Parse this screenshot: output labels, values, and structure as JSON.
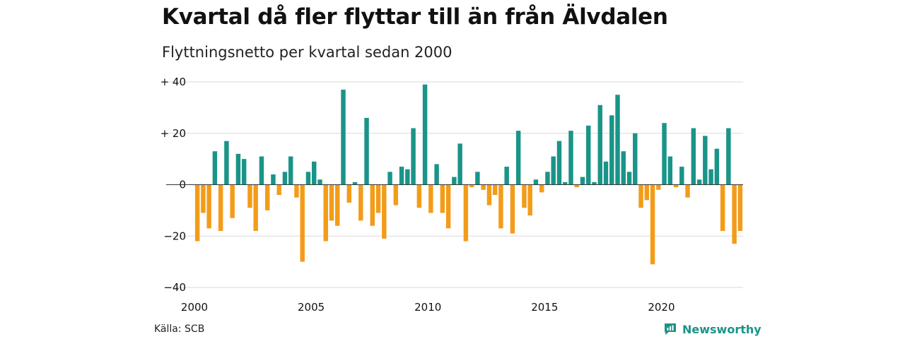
{
  "title": "Kvartal då fler flyttar till än från Älvdalen",
  "subtitle": "Flyttningsnetto per kvartal sedan 2000",
  "source": "Källa: SCB",
  "brand": "Newsworthy",
  "colors": {
    "positive": "#1a9488",
    "negative": "#f39c19",
    "grid": "#d9d9d9",
    "brand": "#1a9488"
  },
  "chart_data": {
    "type": "bar",
    "title": "Kvartal då fler flyttar till än från Älvdalen",
    "subtitle": "Flyttningsnetto per kvartal sedan 2000",
    "xlabel": "",
    "ylabel": "",
    "ylim": [
      -40,
      40
    ],
    "yticks": [
      {
        "value": 40,
        "label": "+ 40"
      },
      {
        "value": 20,
        "label": "+ 20"
      },
      {
        "value": 0,
        "label": "0"
      },
      {
        "value": -20,
        "label": "−20"
      },
      {
        "value": -40,
        "label": "−40"
      }
    ],
    "xticks": [
      "2000",
      "2005",
      "2010",
      "2015",
      "2020"
    ],
    "grid": true,
    "first_year": 2000,
    "values": [
      -22,
      -11,
      -17,
      13,
      -18,
      17,
      -13,
      12,
      10,
      -9,
      -18,
      11,
      -10,
      4,
      -4,
      5,
      11,
      -5,
      -30,
      5,
      9,
      2,
      -22,
      -14,
      -16,
      37,
      -7,
      1,
      -14,
      26,
      -16,
      -11,
      -21,
      5,
      -8,
      7,
      6,
      22,
      -9,
      39,
      -11,
      8,
      -11,
      -17,
      3,
      16,
      -22,
      -1,
      5,
      -2,
      -8,
      -4,
      -17,
      7,
      -19,
      21,
      -9,
      -12,
      2,
      -3,
      5,
      11,
      17,
      1,
      21,
      -1,
      3,
      23,
      1,
      31,
      9,
      27,
      35,
      13,
      5,
      20,
      -9,
      -6,
      -31,
      -2,
      24,
      11,
      -1,
      7,
      -5,
      22,
      2,
      19,
      6,
      14,
      -18,
      22,
      -23,
      -18
    ]
  }
}
